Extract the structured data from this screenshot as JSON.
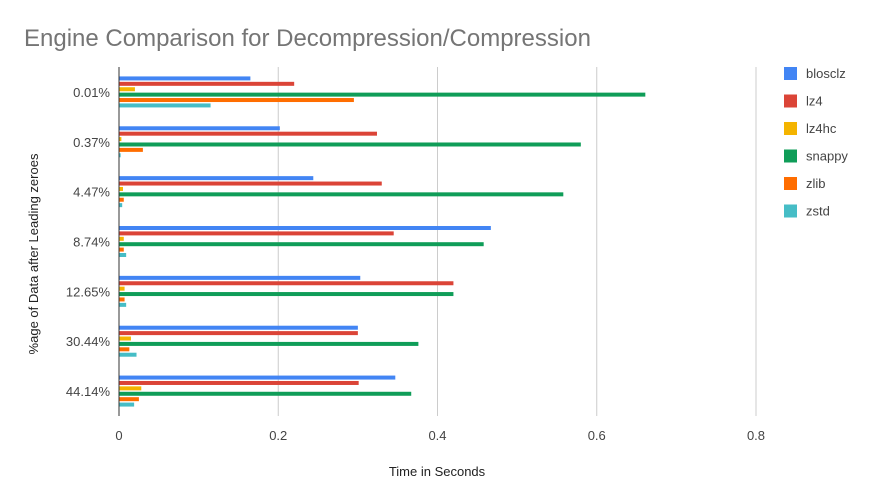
{
  "chart_data": {
    "type": "bar",
    "orientation": "horizontal",
    "title": "Engine Comparison for Decompression/Compression",
    "xlabel": "Time in Seconds",
    "ylabel": "%age of Data after Leading zeroes",
    "xlim": [
      0,
      0.8
    ],
    "xticks": [
      "0",
      "0.2",
      "0.4",
      "0.6",
      "0.8"
    ],
    "grid": true,
    "legend_position": "right",
    "categories": [
      "0.01%",
      "0.37%",
      "4.47%",
      "8.74%",
      "12.65%",
      "30.44%",
      "44.14%"
    ],
    "series": [
      {
        "name": "blosclz",
        "color": "#4285f4",
        "values": [
          0.165,
          0.202,
          0.244,
          0.467,
          0.303,
          0.3,
          0.347
        ]
      },
      {
        "name": "lz4",
        "color": "#db4437",
        "values": [
          0.22,
          0.324,
          0.33,
          0.345,
          0.42,
          0.3,
          0.301
        ]
      },
      {
        "name": "lz4hc",
        "color": "#f4b400",
        "values": [
          0.02,
          0.003,
          0.005,
          0.006,
          0.007,
          0.015,
          0.028
        ]
      },
      {
        "name": "snappy",
        "color": "#0f9d58",
        "values": [
          0.661,
          0.58,
          0.558,
          0.458,
          0.42,
          0.376,
          0.367
        ]
      },
      {
        "name": "zlib",
        "color": "#ff6d00",
        "values": [
          0.295,
          0.03,
          0.006,
          0.006,
          0.007,
          0.013,
          0.025
        ]
      },
      {
        "name": "zstd",
        "color": "#46bdc6",
        "values": [
          0.115,
          0.002,
          0.004,
          0.009,
          0.009,
          0.022,
          0.019
        ]
      }
    ]
  }
}
